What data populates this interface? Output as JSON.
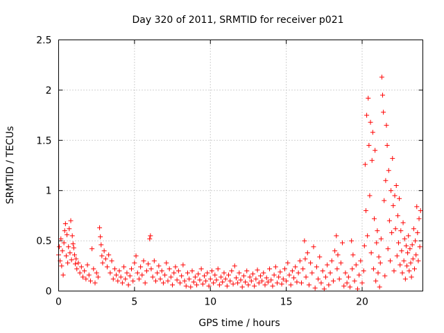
{
  "chart_data": {
    "type": "scatter",
    "title": "Day 320 of 2011, SRMTID for receiver p021",
    "xlabel": "GPS time / hours",
    "ylabel": "SRMTID / TECUs",
    "xlim": [
      0,
      24
    ],
    "ylim": [
      0,
      2.5
    ],
    "x_ticks": [
      0,
      5,
      10,
      15,
      20
    ],
    "x_tick_labels": [
      "0",
      "5",
      "10",
      "15",
      "20"
    ],
    "y_ticks": [
      0,
      0.5,
      1,
      1.5,
      2,
      2.5
    ],
    "y_tick_labels": [
      "0",
      "0.5",
      "1",
      "1.5",
      "2",
      "2.5"
    ],
    "grid": true,
    "marker": "+",
    "series": [
      {
        "name": "p021",
        "color": "#ff0000",
        "points": [
          [
            0.0,
            0.36
          ],
          [
            0.05,
            0.44
          ],
          [
            0.1,
            0.3
          ],
          [
            0.15,
            0.52
          ],
          [
            0.2,
            0.25
          ],
          [
            0.25,
            0.4
          ],
          [
            0.3,
            0.16
          ],
          [
            0.35,
            0.48
          ],
          [
            0.4,
            0.6
          ],
          [
            0.45,
            0.67
          ],
          [
            0.5,
            0.35
          ],
          [
            0.55,
            0.56
          ],
          [
            0.6,
            0.28
          ],
          [
            0.65,
            0.44
          ],
          [
            0.7,
            0.62
          ],
          [
            0.75,
            0.38
          ],
          [
            0.8,
            0.7
          ],
          [
            0.85,
            0.31
          ],
          [
            0.9,
            0.55
          ],
          [
            0.95,
            0.47
          ],
          [
            1.0,
            0.43
          ],
          [
            1.05,
            0.36
          ],
          [
            1.1,
            0.27
          ],
          [
            1.15,
            0.32
          ],
          [
            1.2,
            0.22
          ],
          [
            1.3,
            0.28
          ],
          [
            1.4,
            0.18
          ],
          [
            1.5,
            0.24
          ],
          [
            1.6,
            0.14
          ],
          [
            1.7,
            0.2
          ],
          [
            1.8,
            0.12
          ],
          [
            1.9,
            0.26
          ],
          [
            2.0,
            0.16
          ],
          [
            2.1,
            0.1
          ],
          [
            2.2,
            0.42
          ],
          [
            2.3,
            0.22
          ],
          [
            2.4,
            0.08
          ],
          [
            2.5,
            0.18
          ],
          [
            2.6,
            0.14
          ],
          [
            2.7,
            0.63
          ],
          [
            2.75,
            0.54
          ],
          [
            2.8,
            0.46
          ],
          [
            2.85,
            0.35
          ],
          [
            2.9,
            0.28
          ],
          [
            3.0,
            0.4
          ],
          [
            3.1,
            0.32
          ],
          [
            3.2,
            0.24
          ],
          [
            3.3,
            0.36
          ],
          [
            3.4,
            0.18
          ],
          [
            3.5,
            0.3
          ],
          [
            3.6,
            0.12
          ],
          [
            3.7,
            0.22
          ],
          [
            3.8,
            0.16
          ],
          [
            3.9,
            0.1
          ],
          [
            4.0,
            0.2
          ],
          [
            4.1,
            0.14
          ],
          [
            4.2,
            0.08
          ],
          [
            4.3,
            0.24
          ],
          [
            4.4,
            0.12
          ],
          [
            4.5,
            0.18
          ],
          [
            4.6,
            0.06
          ],
          [
            4.7,
            0.15
          ],
          [
            4.8,
            0.22
          ],
          [
            4.9,
            0.1
          ],
          [
            5.0,
            0.28
          ],
          [
            5.1,
            0.35
          ],
          [
            5.2,
            0.18
          ],
          [
            5.3,
            0.12
          ],
          [
            5.4,
            0.24
          ],
          [
            5.5,
            0.16
          ],
          [
            5.6,
            0.3
          ],
          [
            5.7,
            0.08
          ],
          [
            5.8,
            0.2
          ],
          [
            5.9,
            0.27
          ],
          [
            6.0,
            0.52
          ],
          [
            6.05,
            0.55
          ],
          [
            6.1,
            0.22
          ],
          [
            6.2,
            0.14
          ],
          [
            6.3,
            0.3
          ],
          [
            6.4,
            0.1
          ],
          [
            6.5,
            0.18
          ],
          [
            6.6,
            0.25
          ],
          [
            6.7,
            0.12
          ],
          [
            6.8,
            0.2
          ],
          [
            6.9,
            0.08
          ],
          [
            7.0,
            0.16
          ],
          [
            7.1,
            0.28
          ],
          [
            7.2,
            0.1
          ],
          [
            7.3,
            0.22
          ],
          [
            7.4,
            0.14
          ],
          [
            7.5,
            0.06
          ],
          [
            7.6,
            0.18
          ],
          [
            7.7,
            0.24
          ],
          [
            7.8,
            0.11
          ],
          [
            7.9,
            0.2
          ],
          [
            8.0,
            0.08
          ],
          [
            8.1,
            0.15
          ],
          [
            8.2,
            0.26
          ],
          [
            8.3,
            0.1
          ],
          [
            8.4,
            0.05
          ],
          [
            8.5,
            0.18
          ],
          [
            8.6,
            0.12
          ],
          [
            8.7,
            0.04
          ],
          [
            8.8,
            0.2
          ],
          [
            8.9,
            0.09
          ],
          [
            9.0,
            0.14
          ],
          [
            9.1,
            0.06
          ],
          [
            9.2,
            0.17
          ],
          [
            9.3,
            0.11
          ],
          [
            9.4,
            0.22
          ],
          [
            9.5,
            0.07
          ],
          [
            9.6,
            0.15
          ],
          [
            9.7,
            0.1
          ],
          [
            9.8,
            0.18
          ],
          [
            9.9,
            0.05
          ],
          [
            10.0,
            0.12
          ],
          [
            10.1,
            0.2
          ],
          [
            10.2,
            0.08
          ],
          [
            10.3,
            0.16
          ],
          [
            10.4,
            0.11
          ],
          [
            10.5,
            0.22
          ],
          [
            10.6,
            0.06
          ],
          [
            10.7,
            0.14
          ],
          [
            10.8,
            0.09
          ],
          [
            10.9,
            0.18
          ],
          [
            11.0,
            0.12
          ],
          [
            11.1,
            0.05
          ],
          [
            11.2,
            0.16
          ],
          [
            11.3,
            0.1
          ],
          [
            11.4,
            0.2
          ],
          [
            11.5,
            0.07
          ],
          [
            11.6,
            0.25
          ],
          [
            11.7,
            0.13
          ],
          [
            11.8,
            0.08
          ],
          [
            11.9,
            0.18
          ],
          [
            12.0,
            0.11
          ],
          [
            12.1,
            0.04
          ],
          [
            12.2,
            0.15
          ],
          [
            12.3,
            0.09
          ],
          [
            12.4,
            0.2
          ],
          [
            12.5,
            0.06
          ],
          [
            12.6,
            0.14
          ],
          [
            12.7,
            0.1
          ],
          [
            12.8,
            0.17
          ],
          [
            12.9,
            0.05
          ],
          [
            13.0,
            0.12
          ],
          [
            13.1,
            0.21
          ],
          [
            13.2,
            0.08
          ],
          [
            13.3,
            0.15
          ],
          [
            13.4,
            0.1
          ],
          [
            13.5,
            0.18
          ],
          [
            13.6,
            0.06
          ],
          [
            13.7,
            0.13
          ],
          [
            13.8,
            0.09
          ],
          [
            13.9,
            0.22
          ],
          [
            14.0,
            0.11
          ],
          [
            14.1,
            0.05
          ],
          [
            14.2,
            0.16
          ],
          [
            14.3,
            0.24
          ],
          [
            14.4,
            0.08
          ],
          [
            14.5,
            0.14
          ],
          [
            14.6,
            0.19
          ],
          [
            14.7,
            0.07
          ],
          [
            14.8,
            0.12
          ],
          [
            14.9,
            0.22
          ],
          [
            15.0,
            0.1
          ],
          [
            15.1,
            0.28
          ],
          [
            15.2,
            0.16
          ],
          [
            15.3,
            0.06
          ],
          [
            15.4,
            0.2
          ],
          [
            15.5,
            0.13
          ],
          [
            15.6,
            0.24
          ],
          [
            15.7,
            0.09
          ],
          [
            15.8,
            0.18
          ],
          [
            15.9,
            0.3
          ],
          [
            16.0,
            0.08
          ],
          [
            16.1,
            0.22
          ],
          [
            16.2,
            0.5
          ],
          [
            16.25,
            0.32
          ],
          [
            16.3,
            0.14
          ],
          [
            16.4,
            0.38
          ],
          [
            16.5,
            0.06
          ],
          [
            16.6,
            0.28
          ],
          [
            16.7,
            0.18
          ],
          [
            16.8,
            0.44
          ],
          [
            16.9,
            0.03
          ],
          [
            17.0,
            0.24
          ],
          [
            17.1,
            0.12
          ],
          [
            17.2,
            0.34
          ],
          [
            17.3,
            0.08
          ],
          [
            17.4,
            0.2
          ],
          [
            17.5,
            0.02
          ],
          [
            17.6,
            0.14
          ],
          [
            17.7,
            0.26
          ],
          [
            17.8,
            0.06
          ],
          [
            17.9,
            0.18
          ],
          [
            18.0,
            0.3
          ],
          [
            18.1,
            0.1
          ],
          [
            18.2,
            0.4
          ],
          [
            18.3,
            0.55
          ],
          [
            18.35,
            0.22
          ],
          [
            18.4,
            0.36
          ],
          [
            18.5,
            0.12
          ],
          [
            18.6,
            0.28
          ],
          [
            18.7,
            0.48
          ],
          [
            18.8,
            0.05
          ],
          [
            18.9,
            0.18
          ],
          [
            19.0,
            0.08
          ],
          [
            19.1,
            0.14
          ],
          [
            19.2,
            0.04
          ],
          [
            19.3,
            0.5
          ],
          [
            19.35,
            0.22
          ],
          [
            19.4,
            0.36
          ],
          [
            19.5,
            0.1
          ],
          [
            19.6,
            0.26
          ],
          [
            19.7,
            0.02
          ],
          [
            19.8,
            0.16
          ],
          [
            19.9,
            0.3
          ],
          [
            20.0,
            0.08
          ],
          [
            20.1,
            0.2
          ],
          [
            20.15,
            0.45
          ],
          [
            20.2,
            1.26
          ],
          [
            20.25,
            0.8
          ],
          [
            20.3,
            1.75
          ],
          [
            20.35,
            0.55
          ],
          [
            20.4,
            1.92
          ],
          [
            20.45,
            1.45
          ],
          [
            20.5,
            0.95
          ],
          [
            20.55,
            1.68
          ],
          [
            20.6,
            0.38
          ],
          [
            20.65,
            1.3
          ],
          [
            20.7,
            1.58
          ],
          [
            20.75,
            0.22
          ],
          [
            20.8,
            0.72
          ],
          [
            20.85,
            1.4
          ],
          [
            20.9,
            0.1
          ],
          [
            20.95,
            0.48
          ],
          [
            21.0,
            0.6
          ],
          [
            21.05,
            0.18
          ],
          [
            21.1,
            0.34
          ],
          [
            21.15,
            0.04
          ],
          [
            21.2,
            0.28
          ],
          [
            21.25,
            0.52
          ],
          [
            21.3,
            2.13
          ],
          [
            21.35,
            1.95
          ],
          [
            21.4,
            1.78
          ],
          [
            21.45,
            0.9
          ],
          [
            21.5,
            0.15
          ],
          [
            21.55,
            1.1
          ],
          [
            21.6,
            1.65
          ],
          [
            21.65,
            1.45
          ],
          [
            21.7,
            0.42
          ],
          [
            21.75,
            1.2
          ],
          [
            21.8,
            0.7
          ],
          [
            21.85,
            0.3
          ],
          [
            21.9,
            1.0
          ],
          [
            21.95,
            0.58
          ],
          [
            22.0,
            1.32
          ],
          [
            22.05,
            0.85
          ],
          [
            22.1,
            0.2
          ],
          [
            22.15,
            0.95
          ],
          [
            22.2,
            0.62
          ],
          [
            22.25,
            1.05
          ],
          [
            22.3,
            0.35
          ],
          [
            22.35,
            0.75
          ],
          [
            22.4,
            0.48
          ],
          [
            22.45,
            0.92
          ],
          [
            22.5,
            0.26
          ],
          [
            22.55,
            0.6
          ],
          [
            22.6,
            0.4
          ],
          [
            22.65,
            0.18
          ],
          [
            22.7,
            0.68
          ],
          [
            22.75,
            0.3
          ],
          [
            22.8,
            0.52
          ],
          [
            22.85,
            0.12
          ],
          [
            22.9,
            0.45
          ],
          [
            22.95,
            0.25
          ],
          [
            23.0,
            0.38
          ],
          [
            23.05,
            0.55
          ],
          [
            23.1,
            0.2
          ],
          [
            23.15,
            0.42
          ],
          [
            23.2,
            0.28
          ],
          [
            23.25,
            0.14
          ],
          [
            23.3,
            0.46
          ],
          [
            23.35,
            0.32
          ],
          [
            23.4,
            0.62
          ],
          [
            23.45,
            0.22
          ],
          [
            23.5,
            0.5
          ],
          [
            23.55,
            0.36
          ],
          [
            23.6,
            0.84
          ],
          [
            23.65,
            0.58
          ],
          [
            23.7,
            0.3
          ],
          [
            23.75,
            0.72
          ],
          [
            23.8,
            0.44
          ],
          [
            23.85,
            0.8
          ]
        ]
      }
    ]
  }
}
